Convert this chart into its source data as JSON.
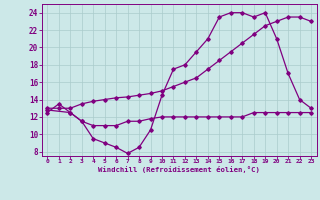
{
  "xlabel": "Windchill (Refroidissement éolien,°C)",
  "bg_color": "#cce8e8",
  "line_color": "#800080",
  "grid_color": "#aacccc",
  "xlim": [
    -0.5,
    23.5
  ],
  "ylim": [
    7.5,
    25
  ],
  "xticks": [
    0,
    1,
    2,
    3,
    4,
    5,
    6,
    7,
    8,
    9,
    10,
    11,
    12,
    13,
    14,
    15,
    16,
    17,
    18,
    19,
    20,
    21,
    22,
    23
  ],
  "yticks": [
    8,
    10,
    12,
    14,
    16,
    18,
    20,
    22,
    24
  ],
  "line1_x": [
    0,
    1,
    2,
    3,
    4,
    5,
    6,
    7,
    8,
    9,
    10,
    11,
    12,
    13,
    14,
    15,
    16,
    17,
    18,
    19,
    20,
    21,
    22,
    23
  ],
  "line1_y": [
    12.5,
    13.5,
    12.5,
    11.5,
    11.0,
    11.0,
    11.0,
    11.5,
    11.5,
    11.8,
    12.0,
    12.0,
    12.0,
    12.0,
    12.0,
    12.0,
    12.0,
    12.0,
    12.5,
    12.5,
    12.5,
    12.5,
    12.5,
    12.5
  ],
  "line2_x": [
    0,
    1,
    2,
    3,
    4,
    5,
    6,
    7,
    8,
    9,
    10,
    11,
    12,
    13,
    14,
    15,
    16,
    17,
    18,
    19,
    20,
    21,
    22,
    23
  ],
  "line2_y": [
    13.0,
    13.0,
    13.0,
    13.5,
    13.8,
    14.0,
    14.2,
    14.3,
    14.5,
    14.7,
    15.0,
    15.5,
    16.0,
    16.5,
    17.5,
    18.5,
    19.5,
    20.5,
    21.5,
    22.5,
    23.0,
    23.5,
    23.5,
    23.0
  ],
  "line3_x": [
    0,
    2,
    3,
    4,
    5,
    6,
    7,
    8,
    9,
    10,
    11,
    12,
    13,
    14,
    15,
    16,
    17,
    18,
    19,
    20,
    21,
    22,
    23
  ],
  "line3_y": [
    12.8,
    12.5,
    11.5,
    9.5,
    9.0,
    8.5,
    7.8,
    8.5,
    10.5,
    14.5,
    17.5,
    18.0,
    19.5,
    21.0,
    23.5,
    24.0,
    24.0,
    23.5,
    24.0,
    21.0,
    17.0,
    14.0,
    13.0
  ]
}
